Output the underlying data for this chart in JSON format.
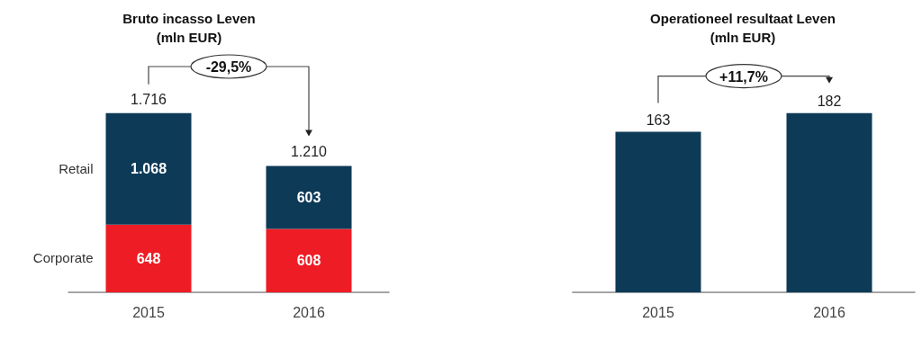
{
  "chart_data": [
    {
      "type": "bar",
      "title": "Bruto incasso Leven",
      "subtitle": "(mln EUR)",
      "categories": [
        "2015",
        "2016"
      ],
      "stacked": true,
      "legend": false,
      "series": [
        {
          "name": "Corporate",
          "color": "#ee1c25",
          "values": [
            648,
            608
          ],
          "value_labels": [
            "648",
            "608"
          ]
        },
        {
          "name": "Retail",
          "color": "#0d3a57",
          "values": [
            1068,
            603
          ],
          "value_labels": [
            "1.068",
            "603"
          ]
        }
      ],
      "totals": [
        "1.716",
        "1.210"
      ],
      "annotations": [
        "-29,5%"
      ]
    },
    {
      "type": "bar",
      "title": "Operationeel resultaat Leven",
      "subtitle": "(mln EUR)",
      "categories": [
        "2015",
        "2016"
      ],
      "legend": false,
      "series": [
        {
          "color": "#0d3a57",
          "values": [
            163,
            182
          ]
        }
      ],
      "data_labels": true,
      "annotations": [
        "+11,7%"
      ]
    }
  ]
}
